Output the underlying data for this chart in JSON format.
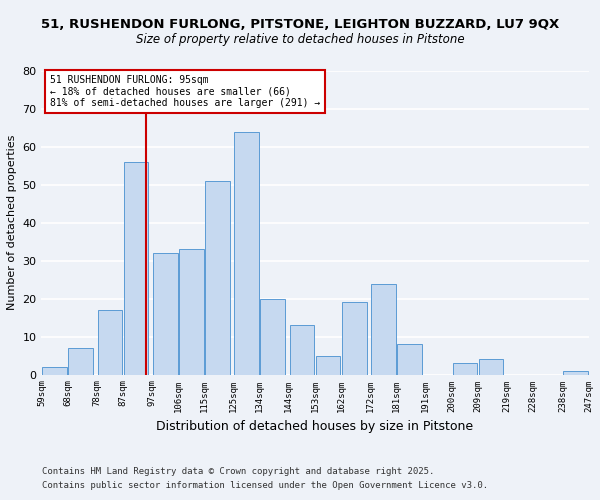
{
  "title1": "51, RUSHENDON FURLONG, PITSTONE, LEIGHTON BUZZARD, LU7 9QX",
  "title2": "Size of property relative to detached houses in Pitstone",
  "xlabel": "Distribution of detached houses by size in Pitstone",
  "ylabel": "Number of detached properties",
  "footer1": "Contains HM Land Registry data © Crown copyright and database right 2025.",
  "footer2": "Contains public sector information licensed under the Open Government Licence v3.0.",
  "bar_centers": [
    63.5,
    72.5,
    82.5,
    91.5,
    101.5,
    110.5,
    119.5,
    129.5,
    138.5,
    148.5,
    157.5,
    166.5,
    176.5,
    185.5,
    195.5,
    204.5,
    213.5,
    223.5,
    232.5,
    242.5
  ],
  "bar_heights": [
    2,
    7,
    17,
    56,
    32,
    33,
    51,
    64,
    20,
    13,
    5,
    19,
    24,
    8,
    0,
    3,
    4,
    0,
    0,
    1
  ],
  "bar_width": 8.5,
  "bar_color": "#c6d9f0",
  "bar_edgecolor": "#5b9bd5",
  "tick_labels": [
    "59sqm",
    "68sqm",
    "78sqm",
    "87sqm",
    "97sqm",
    "106sqm",
    "115sqm",
    "125sqm",
    "134sqm",
    "144sqm",
    "153sqm",
    "162sqm",
    "172sqm",
    "181sqm",
    "191sqm",
    "200sqm",
    "209sqm",
    "219sqm",
    "228sqm",
    "238sqm",
    "247sqm"
  ],
  "tick_positions": [
    59,
    68,
    78,
    87,
    97,
    106,
    115,
    125,
    134,
    144,
    153,
    162,
    172,
    181,
    191,
    200,
    209,
    219,
    228,
    238,
    247
  ],
  "vline_x": 95,
  "vline_color": "#cc0000",
  "annotation_text": "51 RUSHENDON FURLONG: 95sqm\n← 18% of detached houses are smaller (66)\n81% of semi-detached houses are larger (291) →",
  "annotation_box_facecolor": "#ffffff",
  "annotation_box_edgecolor": "#cc0000",
  "xlim": [
    59,
    247
  ],
  "ylim": [
    0,
    80
  ],
  "yticks": [
    0,
    10,
    20,
    30,
    40,
    50,
    60,
    70,
    80
  ],
  "bg_color": "#eef2f8",
  "grid_color": "#ffffff",
  "title1_fontsize": 9.5,
  "title2_fontsize": 8.5,
  "xlabel_fontsize": 9,
  "ylabel_fontsize": 8,
  "tick_fontsize": 6.5,
  "footer_fontsize": 6.5
}
